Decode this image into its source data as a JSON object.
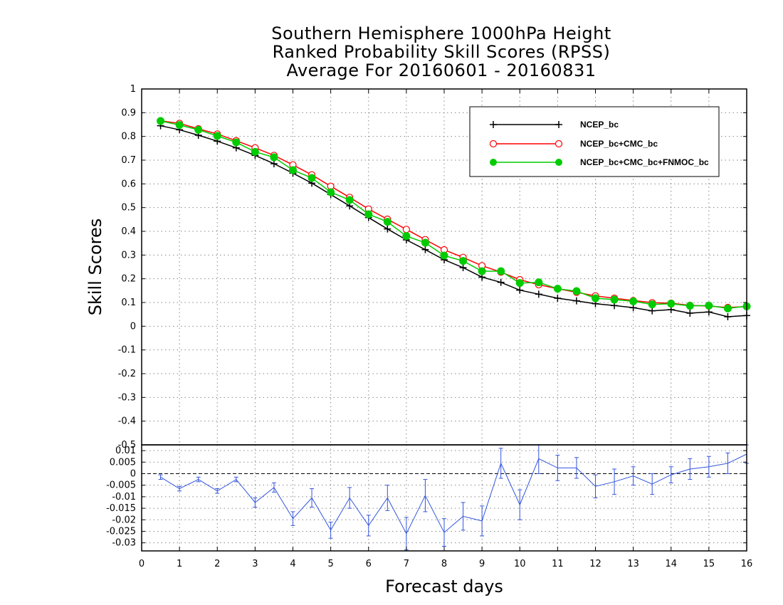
{
  "title_lines": [
    "Southern Hemisphere 1000hPa Height",
    "Ranked Probability Skill Scores (RPSS)",
    "Average For 20160601 - 20160831"
  ],
  "chart_data": [
    {
      "type": "line",
      "title": "Southern Hemisphere 1000hPa Height Ranked Probability Skill Scores (RPSS) Average For 20160601 - 20160831",
      "xlabel": "Forecast days",
      "ylabel": "Skill Scores",
      "xlim": [
        0,
        16
      ],
      "ylim": [
        -0.5,
        1
      ],
      "grid": true,
      "legend_position": "top-right",
      "x": [
        0.5,
        1,
        1.5,
        2,
        2.5,
        3,
        3.5,
        4,
        4.5,
        5,
        5.5,
        6,
        6.5,
        7,
        7.5,
        8,
        8.5,
        9,
        9.5,
        10,
        10.5,
        11,
        11.5,
        12,
        12.5,
        13,
        13.5,
        14,
        14.5,
        15,
        15.5,
        16
      ],
      "x_ticks": [
        "0",
        "1",
        "2",
        "3",
        "4",
        "5",
        "6",
        "7",
        "8",
        "9",
        "10",
        "11",
        "12",
        "13",
        "14",
        "15",
        "16"
      ],
      "y_ticks": [
        "1",
        "0.9",
        "0.8",
        "0.7",
        "0.6",
        "0.5",
        "0.4",
        "0.3",
        "0.2",
        "0.1",
        "0",
        "-0.1",
        "-0.2",
        "-0.3",
        "-0.4",
        "-0.5"
      ],
      "series": [
        {
          "name": "NCEP_bc",
          "color": "#000000",
          "marker": "plus",
          "values": [
            0.845,
            0.828,
            0.805,
            0.78,
            0.752,
            0.72,
            0.685,
            0.645,
            0.603,
            0.555,
            0.507,
            0.458,
            0.41,
            0.364,
            0.323,
            0.28,
            0.247,
            0.207,
            0.185,
            0.152,
            0.135,
            0.118,
            0.107,
            0.095,
            0.087,
            0.078,
            0.065,
            0.07,
            0.055,
            0.06,
            0.04,
            0.045
          ]
        },
        {
          "name": "NCEP_bc+CMC_bc",
          "color": "#ff0000",
          "marker": "open-circle",
          "values": [
            0.866,
            0.855,
            0.832,
            0.81,
            0.782,
            0.752,
            0.72,
            0.68,
            0.638,
            0.59,
            0.543,
            0.494,
            0.451,
            0.408,
            0.365,
            0.322,
            0.29,
            0.255,
            0.228,
            0.196,
            0.175,
            0.158,
            0.143,
            0.128,
            0.118,
            0.108,
            0.099,
            0.097,
            0.088,
            0.085,
            0.079,
            0.083
          ]
        },
        {
          "name": "NCEP_bc+CMC_bc+FNMOC_bc",
          "color": "#00cc00",
          "marker": "filled-circle",
          "values": [
            0.865,
            0.848,
            0.828,
            0.802,
            0.775,
            0.735,
            0.712,
            0.658,
            0.625,
            0.565,
            0.532,
            0.472,
            0.44,
            0.38,
            0.352,
            0.298,
            0.275,
            0.232,
            0.232,
            0.182,
            0.185,
            0.158,
            0.148,
            0.118,
            0.112,
            0.105,
            0.092,
            0.095,
            0.086,
            0.087,
            0.075,
            0.084
          ]
        }
      ]
    },
    {
      "type": "line",
      "xlim": [
        0,
        16
      ],
      "ylim": [
        -0.0335,
        0.0125
      ],
      "x": [
        0.5,
        1,
        1.5,
        2,
        2.5,
        3,
        3.5,
        4,
        4.5,
        5,
        5.5,
        6,
        6.5,
        7,
        7.5,
        8,
        8.5,
        9,
        9.5,
        10,
        10.5,
        11,
        11.5,
        12,
        12.5,
        13,
        13.5,
        14,
        14.5,
        15,
        15.5,
        16
      ],
      "y_ticks": [
        "0.01",
        "0.005",
        "0",
        "-0.005",
        "-0.01",
        "-0.015",
        "-0.02",
        "-0.025",
        "-0.03"
      ],
      "series": [
        {
          "color": "#3355dd",
          "values": [
            -0.0015,
            -0.0065,
            -0.0025,
            -0.0075,
            -0.0025,
            -0.0125,
            -0.006,
            -0.0195,
            -0.0105,
            -0.0245,
            -0.0105,
            -0.0225,
            -0.0105,
            -0.026,
            -0.0095,
            -0.0255,
            -0.0185,
            -0.0205,
            0.0045,
            -0.0135,
            0.0065,
            0.0025,
            0.0025,
            -0.0055,
            -0.0035,
            -0.001,
            -0.0045,
            -0.0005,
            0.002,
            0.003,
            0.0045,
            0.0085
          ],
          "errors": [
            0.001,
            0.001,
            0.001,
            0.001,
            0.001,
            0.002,
            0.002,
            0.003,
            0.004,
            0.0035,
            0.0045,
            0.0045,
            0.0055,
            0.007,
            0.007,
            0.006,
            0.006,
            0.0065,
            0.0065,
            0.0065,
            0.0065,
            0.0055,
            0.0045,
            0.005,
            0.0055,
            0.004,
            0.0045,
            0.0035,
            0.0045,
            0.0045,
            0.0045,
            0.004
          ]
        }
      ]
    }
  ]
}
